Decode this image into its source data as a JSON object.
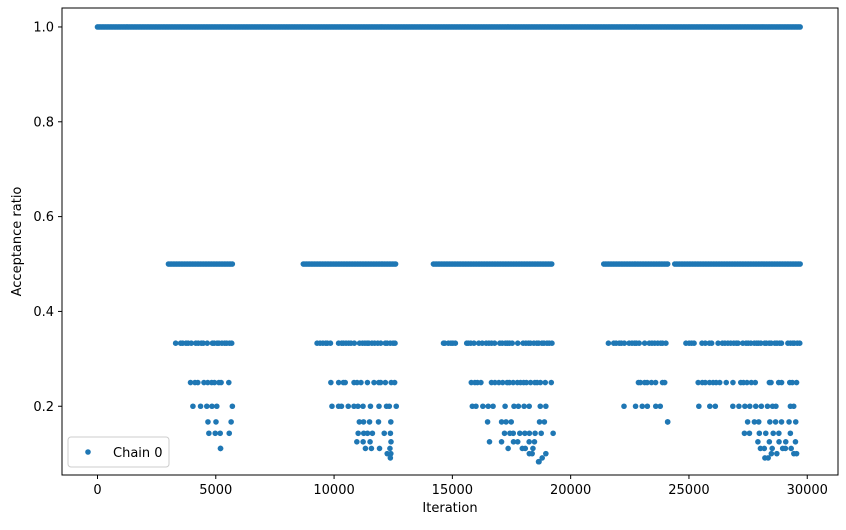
{
  "chart_data": {
    "type": "scatter",
    "title": "",
    "xlabel": "Iteration",
    "ylabel": "Acceptance ratio",
    "xlim": [
      -1500,
      31300
    ],
    "ylim": [
      0.055,
      1.04
    ],
    "xticks": [
      0,
      5000,
      10000,
      15000,
      20000,
      25000,
      30000
    ],
    "xtick_labels": [
      "0",
      "5000",
      "10000",
      "15000",
      "20000",
      "25000",
      "30000"
    ],
    "yticks": [
      0.2,
      0.4,
      0.6,
      0.8,
      1.0
    ],
    "ytick_labels": [
      "0.2",
      "0.4",
      "0.6",
      "0.8",
      "1.0"
    ],
    "grid": false,
    "legend_position": "lower-left",
    "marker_color": "#1f77b4",
    "series": [
      {
        "name": "Chain 0",
        "bands": [
          {
            "y": 1.0,
            "x_ranges": [
              [
                0,
                29700
              ]
            ]
          },
          {
            "y": 0.5,
            "x_ranges": [
              [
                3000,
                5700
              ],
              [
                8700,
                12600
              ],
              [
                14200,
                19200
              ],
              [
                21400,
                24100
              ],
              [
                24400,
                29700
              ]
            ]
          },
          {
            "y": 0.333,
            "x_ranges": [
              [
                3300,
                5700
              ],
              [
                9300,
                12600
              ],
              [
                14600,
                19200
              ],
              [
                21600,
                24000
              ],
              [
                24900,
                29700
              ]
            ]
          },
          {
            "y": 0.25,
            "x_ranges": [
              [
                3800,
                5700
              ],
              [
                9900,
                12600
              ],
              [
                15800,
                19200
              ],
              [
                22700,
                24000
              ],
              [
                25400,
                29700
              ]
            ]
          },
          {
            "y": 0.2,
            "x_ranges": [
              [
                4100,
                5700
              ],
              [
                9900,
                12600
              ],
              [
                15800,
                19200
              ],
              [
                22300,
                23800
              ],
              [
                25400,
                29700
              ]
            ]
          },
          {
            "y": 0.167,
            "x_ranges": [
              [
                4700,
                5700
              ],
              [
                10800,
                12600
              ],
              [
                16300,
                19200
              ],
              [
                24100,
                24100
              ],
              [
                27500,
                29700
              ]
            ]
          },
          {
            "y": 0.143,
            "x_ranges": [
              [
                4500,
                5600
              ],
              [
                11000,
                12600
              ],
              [
                16500,
                19200
              ],
              [
                27300,
                29700
              ]
            ]
          },
          {
            "y": 0.125,
            "x_ranges": [
              [
                10800,
                12400
              ],
              [
                16600,
                19000
              ],
              [
                27700,
                29700
              ]
            ]
          },
          {
            "y": 0.111,
            "x_ranges": [
              [
                5200,
                5200
              ],
              [
                11300,
                12400
              ],
              [
                17400,
                18900
              ],
              [
                28000,
                29600
              ]
            ]
          },
          {
            "y": 0.1,
            "x_ranges": [
              [
                12300,
                12400
              ],
              [
                18200,
                18900
              ],
              [
                28500,
                29600
              ]
            ]
          },
          {
            "y": 0.091,
            "x_ranges": [
              [
                12400,
                12500
              ],
              [
                18500,
                18800
              ],
              [
                28200,
                28300
              ]
            ]
          },
          {
            "y": 0.083,
            "x_ranges": [
              [
                18600,
                18700
              ]
            ]
          }
        ]
      }
    ]
  }
}
